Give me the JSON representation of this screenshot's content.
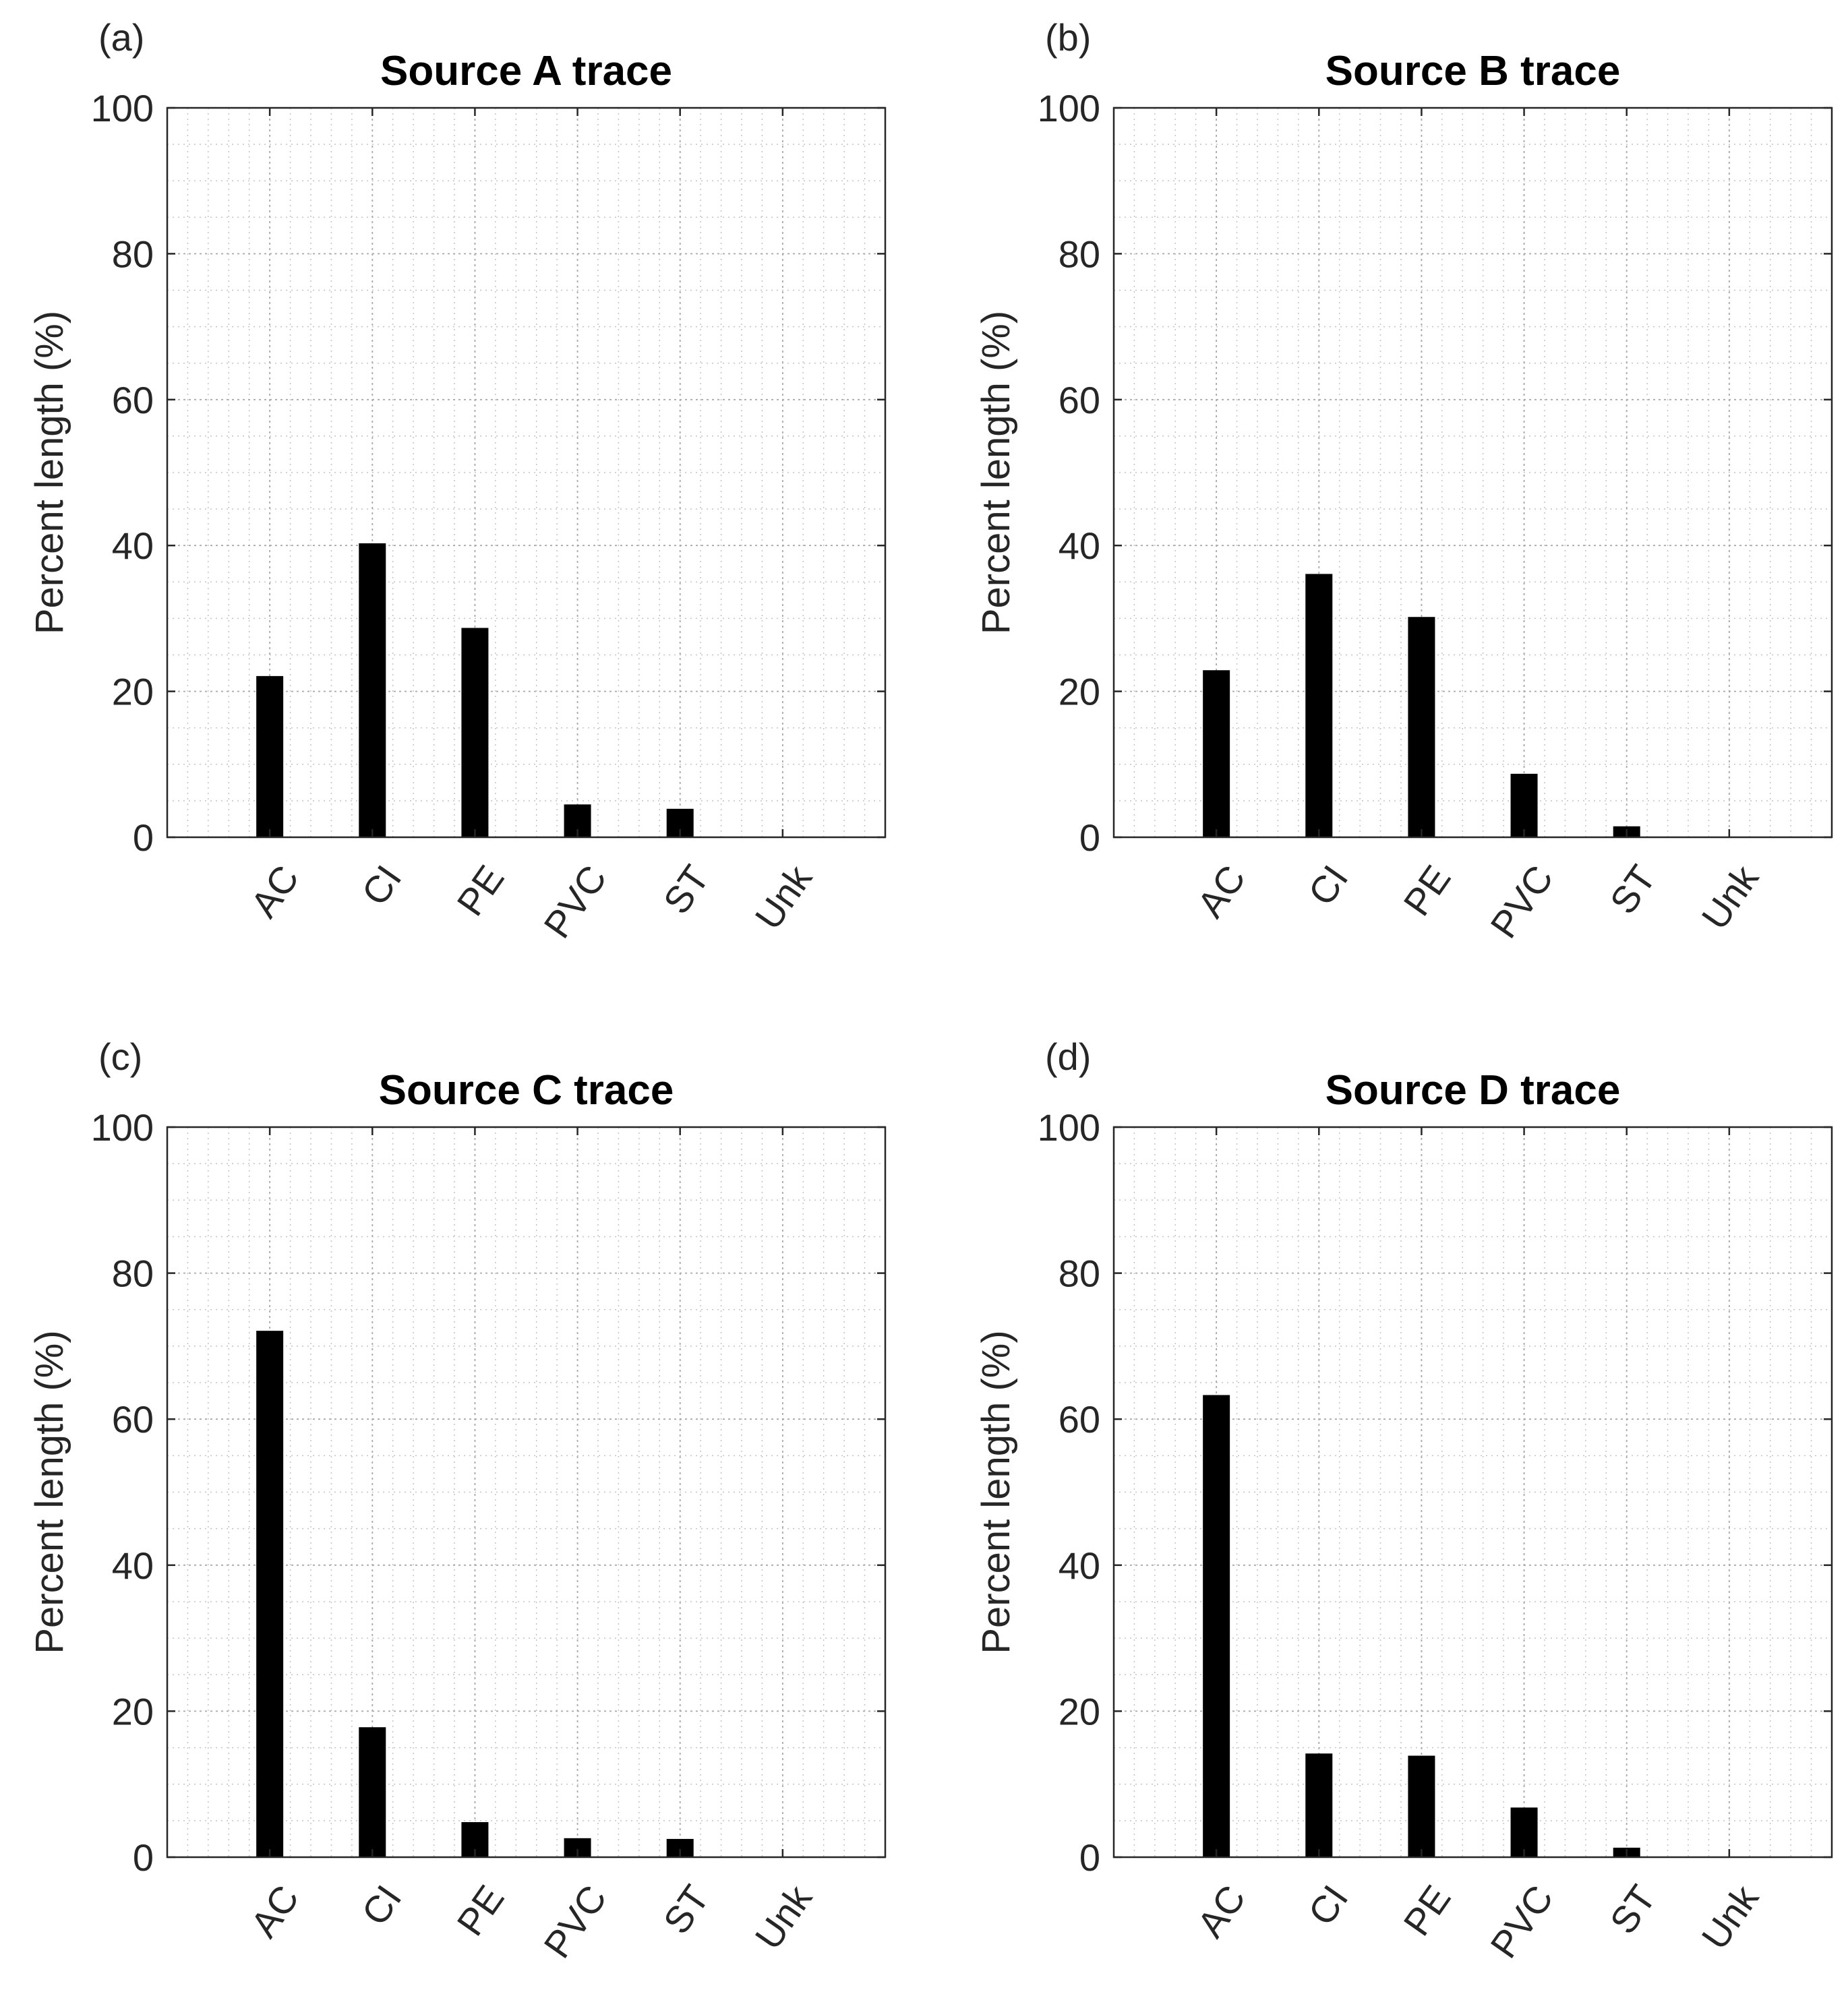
{
  "chart_data": [
    {
      "type": "bar",
      "panel_label": "(a)",
      "title": "Source A trace",
      "xlabel": "",
      "ylabel": "Percent length (%)",
      "categories": [
        "AC",
        "CI",
        "PE",
        "PVC",
        "ST",
        "Unk"
      ],
      "values": [
        22.1,
        40.3,
        28.7,
        4.5,
        3.9,
        0
      ],
      "ylim": [
        0,
        100
      ],
      "yticks": [
        0,
        20,
        40,
        60,
        80,
        100
      ],
      "grid": true
    },
    {
      "type": "bar",
      "panel_label": "(b)",
      "title": "Source B trace",
      "xlabel": "",
      "ylabel": "Percent length (%)",
      "categories": [
        "AC",
        "CI",
        "PE",
        "PVC",
        "ST",
        "Unk"
      ],
      "values": [
        22.9,
        36.1,
        30.2,
        8.7,
        1.5,
        0
      ],
      "ylim": [
        0,
        100
      ],
      "yticks": [
        0,
        20,
        40,
        60,
        80,
        100
      ],
      "grid": true
    },
    {
      "type": "bar",
      "panel_label": "(c)",
      "title": "Source C trace",
      "xlabel": "",
      "ylabel": "Percent length (%)",
      "categories": [
        "AC",
        "CI",
        "PE",
        "PVC",
        "ST",
        "Unk"
      ],
      "values": [
        72.1,
        17.8,
        4.8,
        2.6,
        2.5,
        0
      ],
      "ylim": [
        0,
        100
      ],
      "yticks": [
        0,
        20,
        40,
        60,
        80,
        100
      ],
      "grid": true
    },
    {
      "type": "bar",
      "panel_label": "(d)",
      "title": "Source D trace",
      "xlabel": "",
      "ylabel": "Percent length (%)",
      "categories": [
        "AC",
        "CI",
        "PE",
        "PVC",
        "ST",
        "Unk"
      ],
      "values": [
        63.3,
        14.2,
        13.9,
        6.8,
        1.3,
        0
      ],
      "ylim": [
        0,
        100
      ],
      "yticks": [
        0,
        20,
        40,
        60,
        80,
        100
      ],
      "grid": true
    }
  ],
  "colors": {
    "bar": "#000000",
    "axis": "#262626",
    "minor_grid": "#c4c4c4",
    "text": "#262626"
  }
}
